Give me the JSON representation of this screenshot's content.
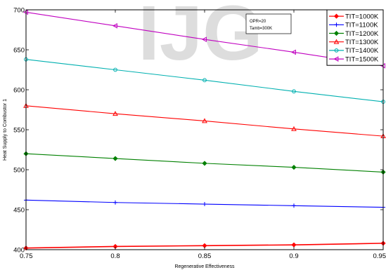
{
  "chart_data": {
    "type": "line",
    "title": "",
    "xlabel": "Regenerative Effectiveness",
    "ylabel": "Heat Supply to Combustor 1",
    "xlim": [
      0.75,
      0.95
    ],
    "ylim": [
      400,
      700
    ],
    "x_ticks": [
      0.75,
      0.8,
      0.85,
      0.9,
      0.95
    ],
    "x_tick_labels": [
      "0.75",
      "0.8",
      "0.85",
      "0.9",
      "0.95"
    ],
    "y_ticks": [
      400,
      450,
      500,
      550,
      600,
      650,
      700
    ],
    "y_tick_labels": [
      "400",
      "450",
      "500",
      "550",
      "600",
      "650",
      "700"
    ],
    "grid": false,
    "legend_position": "top-right",
    "annotation": {
      "line1": "OPR=20",
      "line2": "Tamb=300K"
    },
    "x": [
      0.75,
      0.8,
      0.85,
      0.9,
      0.95
    ],
    "series": [
      {
        "name": "TIT=1000K",
        "color": "#ff0000",
        "marker": "diamond-filled",
        "values": [
          402,
          404,
          405,
          406,
          408
        ]
      },
      {
        "name": "TIT=1100K",
        "color": "#0000ff",
        "marker": "plus",
        "values": [
          462,
          459,
          457,
          455,
          453
        ]
      },
      {
        "name": "TIT=1200K",
        "color": "#008000",
        "marker": "diamond-filled",
        "values": [
          520,
          514,
          508,
          503,
          497
        ]
      },
      {
        "name": "TIT=1300K",
        "color": "#ff0000",
        "marker": "triangle-up",
        "values": [
          580,
          570,
          561,
          551,
          542
        ]
      },
      {
        "name": "TIT=1400K",
        "color": "#00b0b0",
        "marker": "circle",
        "values": [
          638,
          625,
          612,
          598,
          585
        ]
      },
      {
        "name": "TIT=1500K",
        "color": "#c000c0",
        "marker": "triangle-left",
        "values": [
          697,
          680,
          663,
          647,
          630
        ]
      }
    ]
  }
}
